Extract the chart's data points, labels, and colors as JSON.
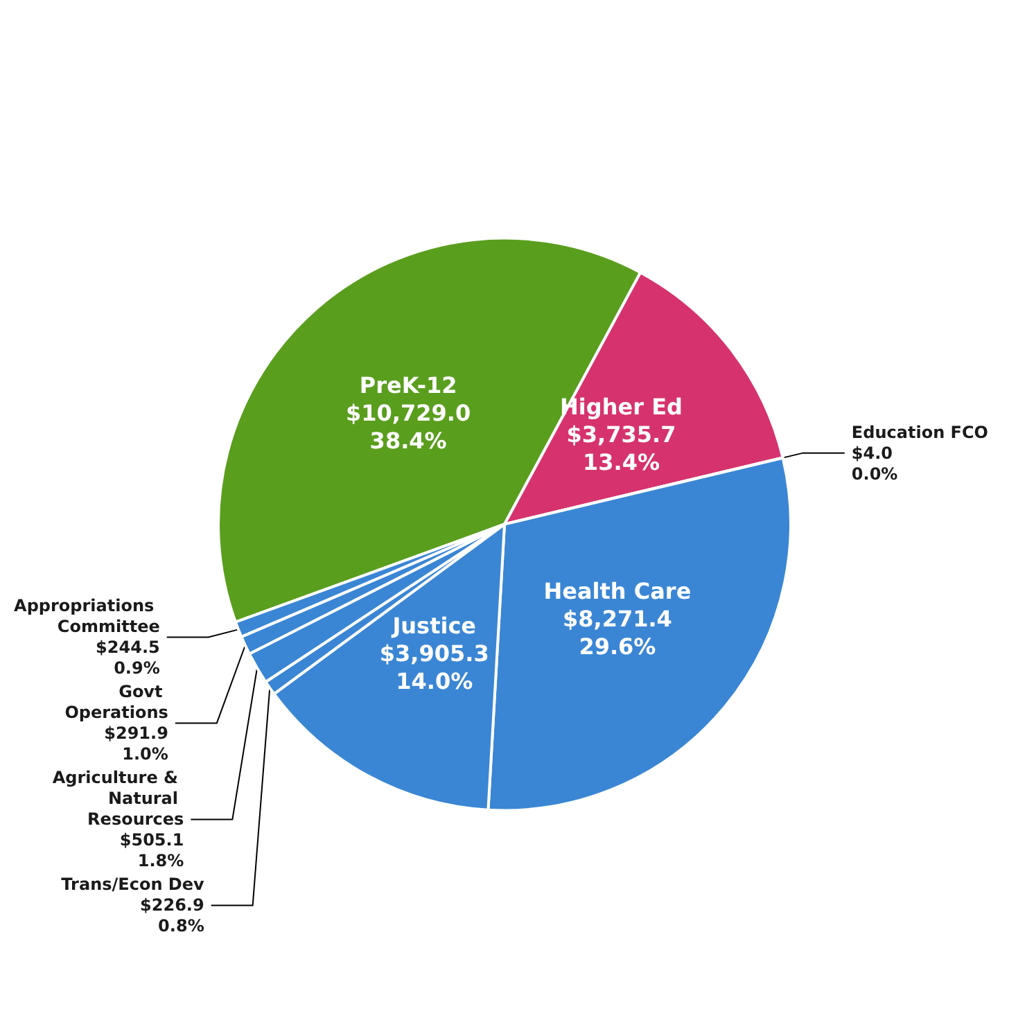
{
  "chart_data": {
    "type": "pie",
    "categories": [
      "PreK-12",
      "Higher Ed",
      "Education FCO",
      "Health Care",
      "Justice",
      "Trans/Econ Dev",
      "Agriculture & Natural Resources",
      "Govt Operations",
      "Appropriations Committee"
    ],
    "values": [
      10729.0,
      3735.7,
      4.0,
      8271.4,
      3905.3,
      226.9,
      505.1,
      291.9,
      244.5
    ],
    "value_labels": [
      "$10,729.0\n38.4%",
      "$3,735.7\n13.4%",
      "$4.0\n0.0%",
      "$8,271.4\n29.6%",
      "$3,905.3\n14.0%",
      "$226.9\n0.8%",
      "$505.1\n1.8%",
      "$291.9\n1.0%",
      "$244.5\n0.9%"
    ],
    "colors": [
      "#5a9e1e",
      "#d6336e",
      "#d6336e",
      "#3a86d4",
      "#3a86d4",
      "#3a86d4",
      "#3a86d4",
      "#3a86d4",
      "#3a86d4"
    ],
    "legend": false
  }
}
